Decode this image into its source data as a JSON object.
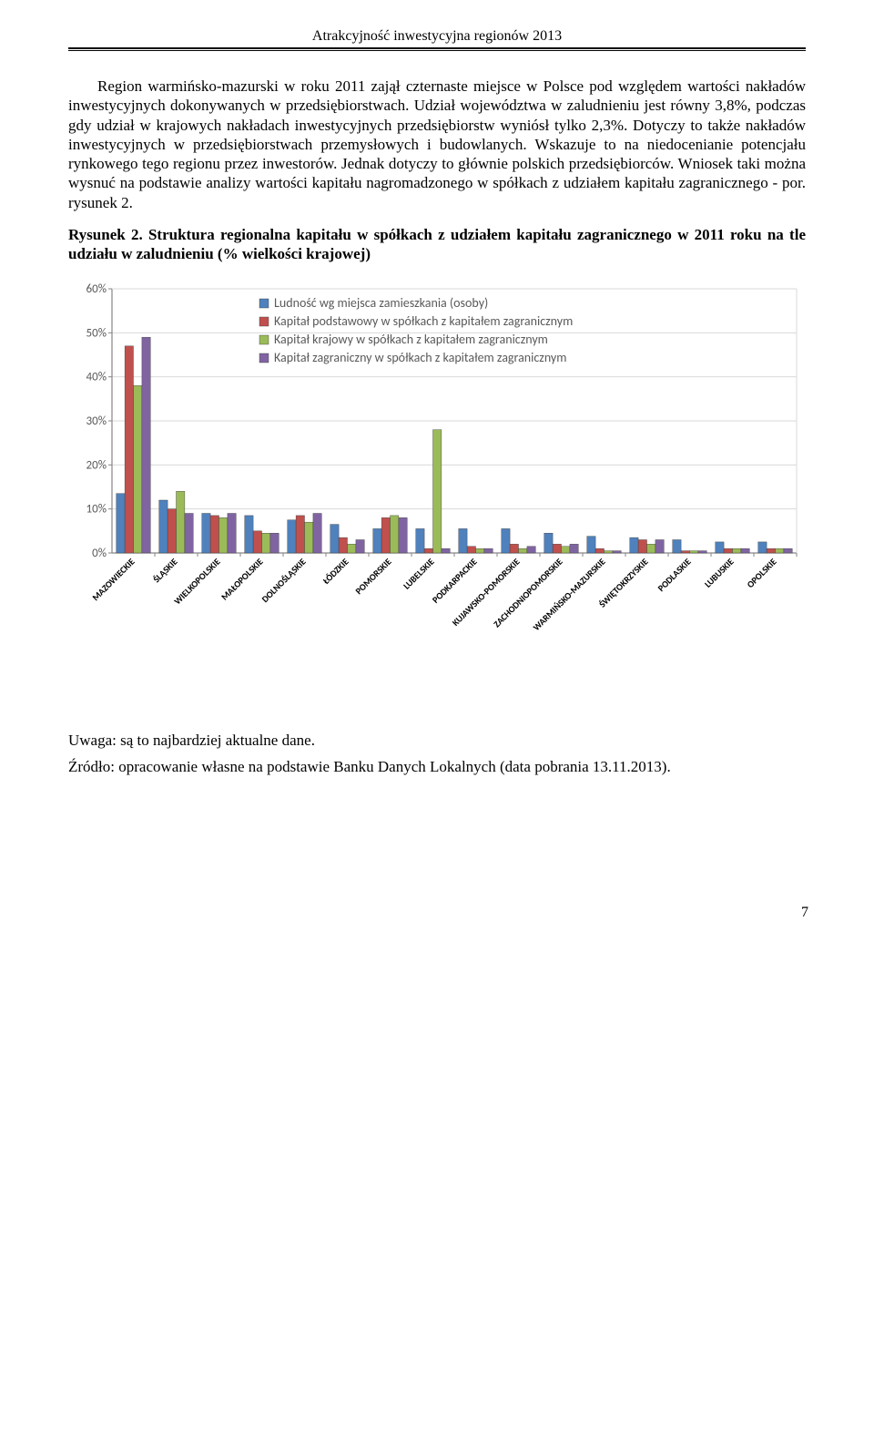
{
  "header": {
    "title": "Atrakcyjność inwestycyjna regionów 2013"
  },
  "body_text": {
    "p1": "Region warmińsko-mazurski w roku 2011 zajął czternaste miejsce w Polsce pod względem wartości nakładów inwestycyjnych dokonywanych w przedsiębiorstwach. Udział województwa w zaludnieniu jest równy 3,8%, podczas gdy udział w krajowych nakładach inwestycyjnych przedsiębiorstw wyniósł tylko 2,3%. Dotyczy to także nakładów inwestycyjnych w przedsiębiorstwach przemysłowych i budowlanych. Wskazuje to na niedocenianie potencjału rynkowego tego regionu przez inwestorów.    Jednak dotyczy to głównie polskich przedsiębiorców. Wniosek taki można wysnuć na podstawie analizy wartości kapitału nagromadzonego w spółkach z udziałem kapitału zagranicznego - por. rysunek 2.",
    "chart_title_bold": "Rysunek 2. Struktura regionalna kapitału w spółkach z udziałem kapitału zagranicznego w 2011 roku na tle udziału w zaludnieniu (% wielkości krajowej)",
    "note1": "Uwaga: są to najbardziej aktualne dane.",
    "note2": "Źródło: opracowanie własne na podstawie Banku Danych Lokalnych (data pobrania 13.11.2013)."
  },
  "chart": {
    "type": "grouped-bar",
    "ylim": [
      0,
      60
    ],
    "ytick_step": 10,
    "yticks": [
      "0%",
      "10%",
      "20%",
      "30%",
      "40%",
      "50%",
      "60%"
    ],
    "series_colors": [
      "#4f81bd",
      "#c0504d",
      "#9bbb59",
      "#8064a2"
    ],
    "legend": [
      "Ludność wg miejsca zamieszkania (osoby)",
      "Kapitał podstawowy w spółkach z kapitałem zagranicznym",
      "Kapitał krajowy w spółkach z kapitałem zagranicznym",
      "Kapitał zagraniczny w spółkach z kapitałem zagranicznym"
    ],
    "categories": [
      "MAZOWIECKIE",
      "ŚLĄSKIE",
      "WIELKOPOLSKIE",
      "MAŁOPOLSKIE",
      "DOLNOŚLĄSKIE",
      "ŁÓDZKIE",
      "POMORSKIE",
      "LUBELSKIE",
      "PODKARPACKIE",
      "KUJAWSKO-POMORSKIE",
      "ZACHODNIOPOMORSKIE",
      "WARMIŃSKO-MAZURSKIE",
      "ŚWIĘTOKRZYSKIE",
      "PODLASKIE",
      "LUBUSKIE",
      "OPOLSKIE"
    ],
    "values": [
      [
        13.5,
        47.0,
        38.0,
        49.0
      ],
      [
        12.0,
        10.0,
        14.0,
        9.0
      ],
      [
        9.0,
        8.5,
        8.0,
        9.0
      ],
      [
        8.5,
        5.0,
        4.5,
        4.5
      ],
      [
        7.5,
        8.5,
        7.0,
        9.0
      ],
      [
        6.5,
        3.5,
        2.0,
        3.0
      ],
      [
        5.5,
        8.0,
        8.5,
        8.0
      ],
      [
        5.5,
        1.0,
        28.0,
        1.0
      ],
      [
        5.5,
        1.5,
        1.0,
        1.0
      ],
      [
        5.5,
        2.0,
        1.0,
        1.5
      ],
      [
        4.5,
        2.0,
        1.5,
        2.0
      ],
      [
        3.8,
        1.0,
        0.5,
        0.5
      ],
      [
        3.5,
        3.0,
        2.0,
        3.0
      ],
      [
        3.0,
        0.5,
        0.5,
        0.5
      ],
      [
        2.5,
        1.0,
        1.0,
        1.0
      ],
      [
        2.5,
        1.0,
        1.0,
        1.0
      ]
    ],
    "axis_color": "#868686",
    "grid_color": "#d9d9d9",
    "tick_fontsize": 13,
    "label_fontsize": 10,
    "legend_fontsize": 14,
    "background_color": "#ffffff"
  },
  "page_number": "7"
}
